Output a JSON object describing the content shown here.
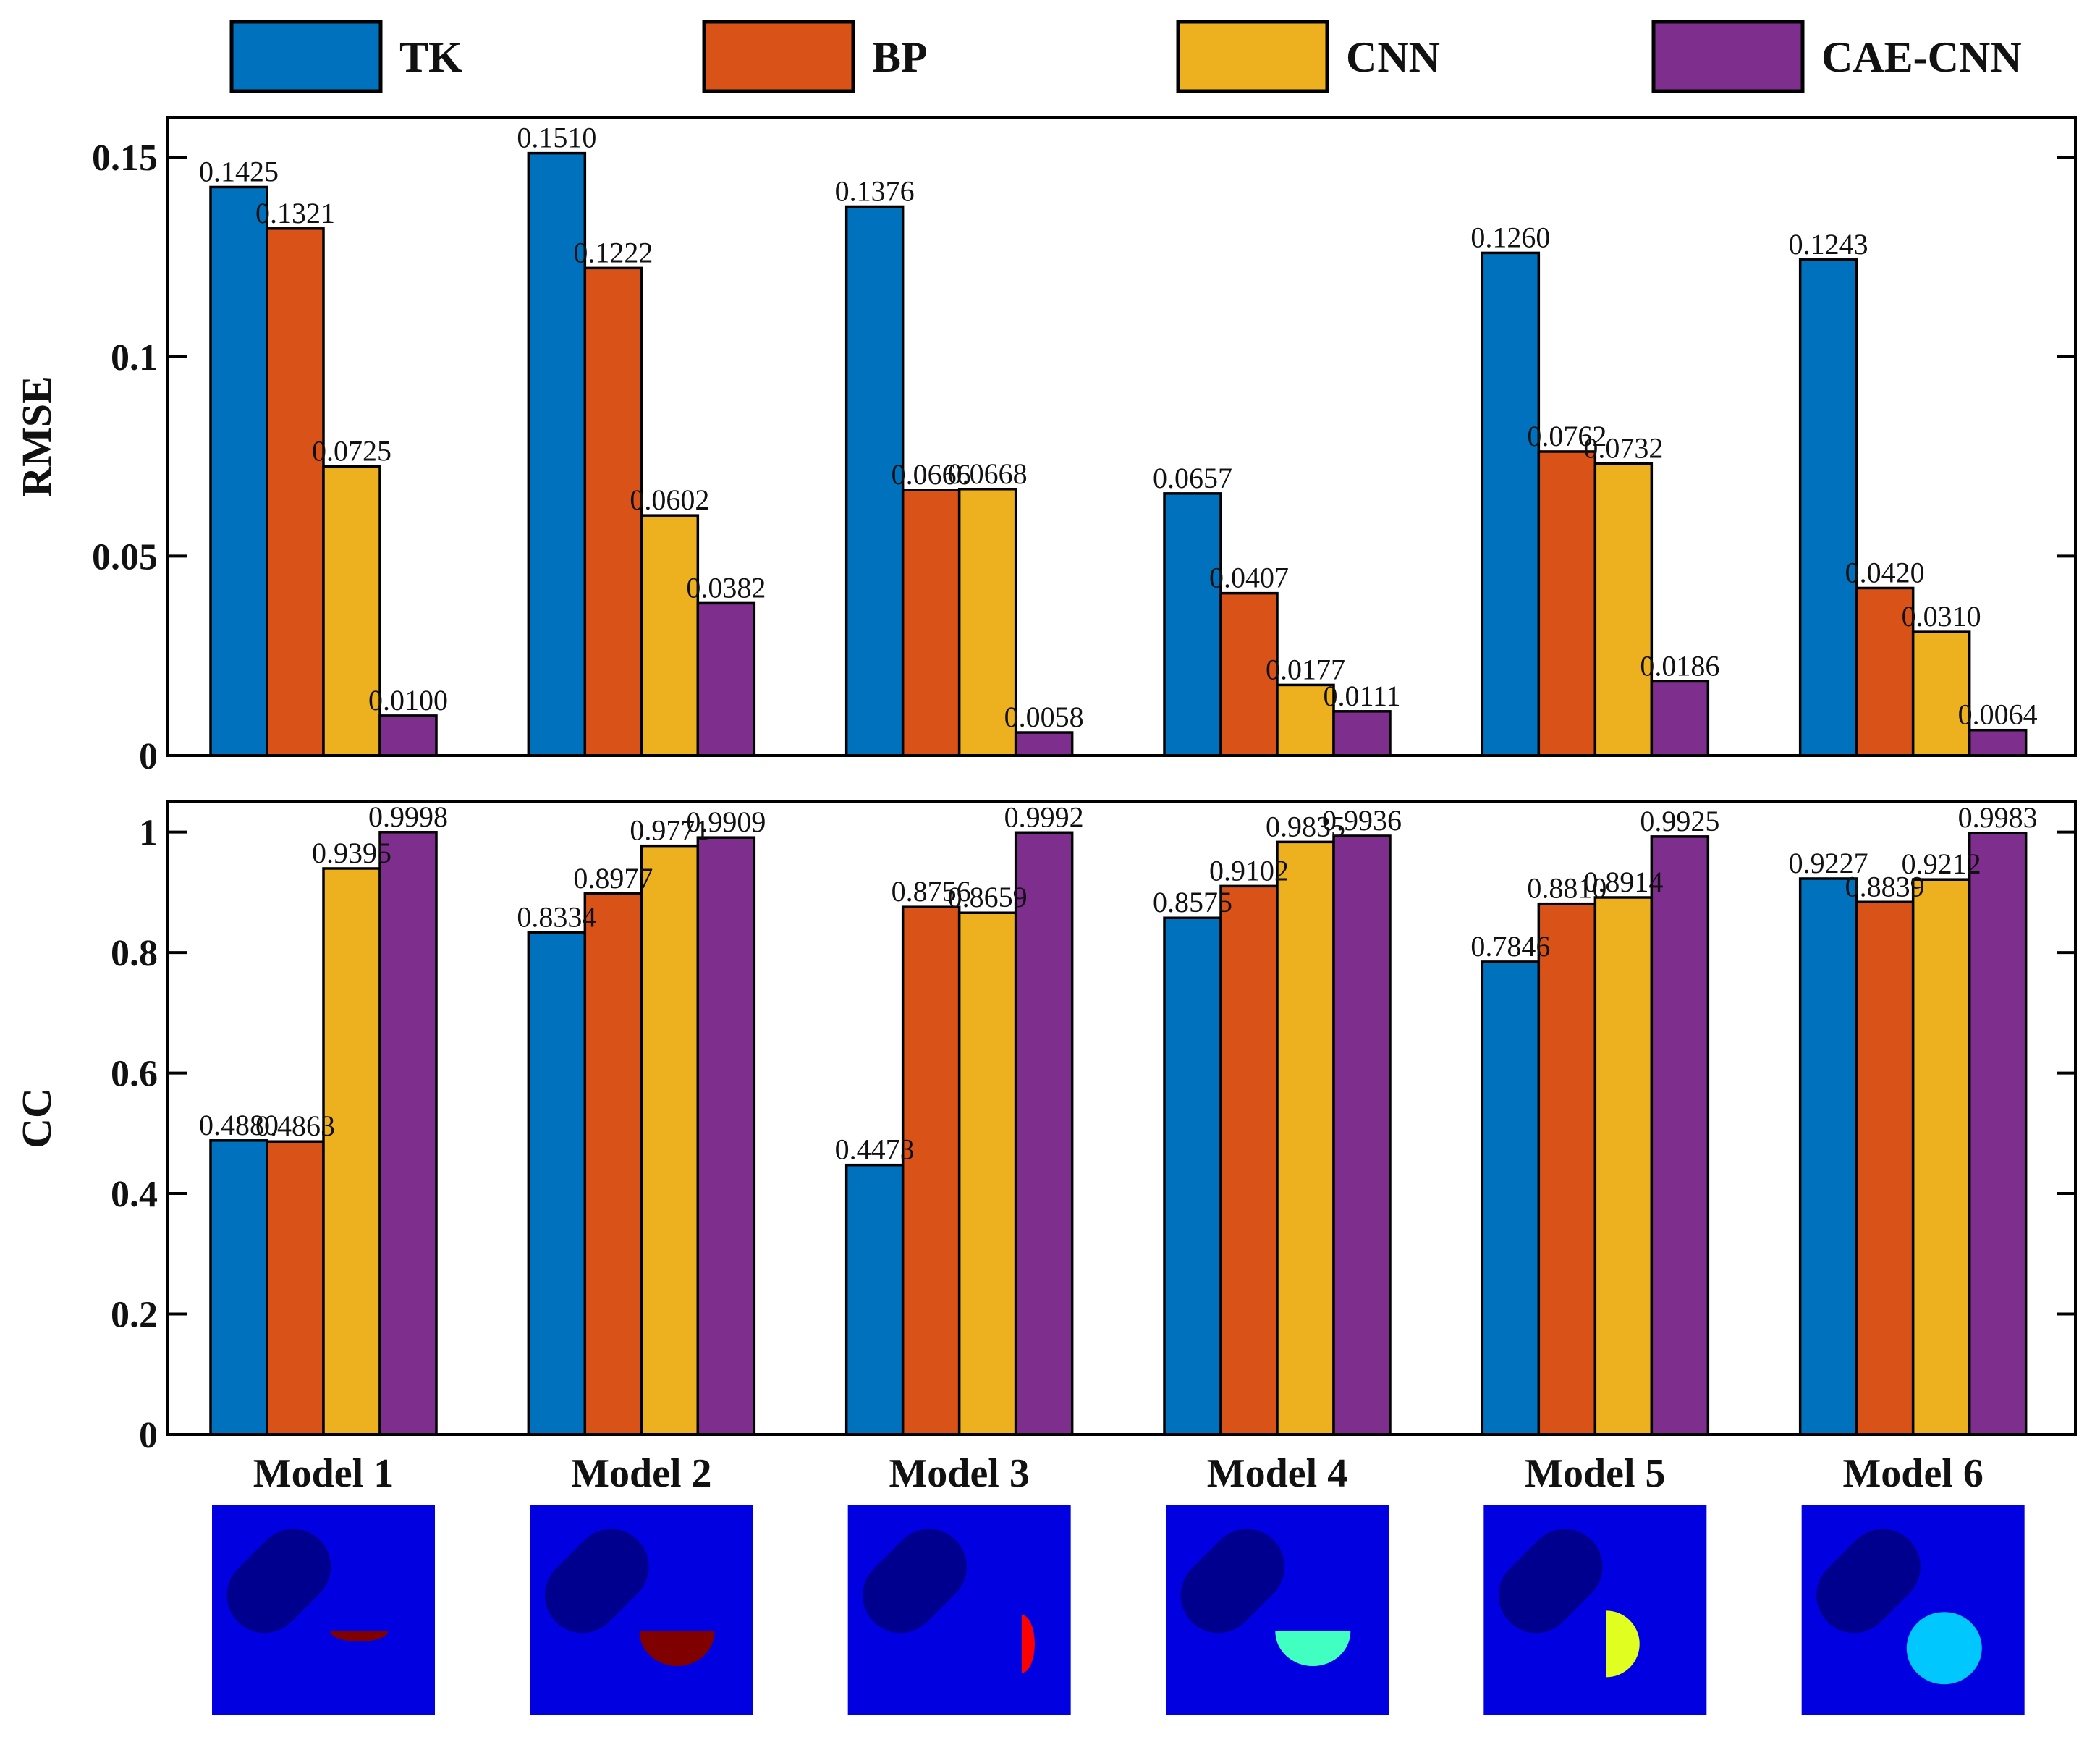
{
  "colors": {
    "TK": "#0072BD",
    "BP": "#D95319",
    "CNN": "#EDB120",
    "CAE-CNN": "#7E2F8E"
  },
  "legend": [
    "TK",
    "BP",
    "CNN",
    "CAE-CNN"
  ],
  "chart_data": [
    {
      "type": "bar",
      "title": "",
      "xlabel": "",
      "ylabel": "RMSE",
      "ylim": [
        0,
        0.16
      ],
      "yticks": [
        0,
        0.05,
        0.1,
        0.15
      ],
      "ytick_labels": [
        "0",
        "0.05",
        "0.1",
        "0.15"
      ],
      "categories": [
        "Model 1",
        "Model 2",
        "Model 3",
        "Model 4",
        "Model 5",
        "Model 6"
      ],
      "series": [
        {
          "name": "TK",
          "values": [
            0.1425,
            0.151,
            0.1376,
            0.0657,
            0.126,
            0.1243
          ],
          "labels": [
            "0.1425",
            "0.1510",
            "0.1376",
            "0.0657",
            "0.1260",
            "0.1243"
          ]
        },
        {
          "name": "BP",
          "values": [
            0.1321,
            0.1222,
            0.0666,
            0.0407,
            0.0762,
            0.042
          ],
          "labels": [
            "0.1321",
            "0.1222",
            "0.0666",
            "0.0407",
            "0.0762",
            "0.0420"
          ]
        },
        {
          "name": "CNN",
          "values": [
            0.0725,
            0.0602,
            0.0668,
            0.0177,
            0.0732,
            0.031
          ],
          "labels": [
            "0.0725",
            "0.0602",
            "0.0668",
            "0.0177",
            "0.0732",
            "0.0310"
          ]
        },
        {
          "name": "CAE-CNN",
          "values": [
            0.01,
            0.0382,
            0.0058,
            0.0111,
            0.0186,
            0.0064
          ],
          "labels": [
            "0.0100",
            "0.0382",
            "0.0058",
            "0.0111",
            "0.0186",
            "0.0064"
          ]
        }
      ]
    },
    {
      "type": "bar",
      "title": "",
      "xlabel": "",
      "ylabel": "CC",
      "ylim": [
        0,
        1.05
      ],
      "yticks": [
        0,
        0.2,
        0.4,
        0.6,
        0.8,
        1
      ],
      "ytick_labels": [
        "0",
        "0.2",
        "0.4",
        "0.6",
        "0.8",
        "1"
      ],
      "categories": [
        "Model 1",
        "Model 2",
        "Model 3",
        "Model 4",
        "Model 5",
        "Model 6"
      ],
      "series": [
        {
          "name": "TK",
          "values": [
            0.488,
            0.8334,
            0.4473,
            0.8575,
            0.7846,
            0.9227
          ],
          "labels": [
            "0.4880",
            "0.8334",
            "0.4473",
            "0.8575",
            "0.7846",
            "0.9227"
          ]
        },
        {
          "name": "BP",
          "values": [
            0.4863,
            0.8977,
            0.8756,
            0.9102,
            0.881,
            0.8839
          ],
          "labels": [
            "0.4863",
            "0.8977",
            "0.8756",
            "0.9102",
            "0.8810",
            "0.8839"
          ]
        },
        {
          "name": "CNN",
          "values": [
            0.9395,
            0.9771,
            0.8659,
            0.9835,
            0.8914,
            0.9212
          ],
          "labels": [
            "0.9395",
            "0.9771",
            "0.8659",
            "0.9835",
            "0.8914",
            "0.9212"
          ]
        },
        {
          "name": "CAE-CNN",
          "values": [
            0.9998,
            0.9909,
            0.9992,
            0.9936,
            0.9925,
            0.9983
          ],
          "labels": [
            "0.9998",
            "0.9909",
            "0.9992",
            "0.9936",
            "0.9925",
            "0.9983"
          ]
        }
      ]
    }
  ],
  "model_images": [
    {
      "model": "Model 1",
      "target": "half-disc-bottom",
      "color": "#800000"
    },
    {
      "model": "Model 2",
      "target": "half-disc-bottom",
      "color": "#800000"
    },
    {
      "model": "Model 3",
      "target": "half-disc-right",
      "color": "#FF0000"
    },
    {
      "model": "Model 4",
      "target": "half-disc-bottom",
      "color": "#40FFC0"
    },
    {
      "model": "Model 5",
      "target": "half-disc-right",
      "color": "#E0FF20"
    },
    {
      "model": "Model 6",
      "target": "circle",
      "color": "#00C8FF"
    }
  ],
  "image_background": "#0000E0",
  "image_capsule": "#00008F"
}
